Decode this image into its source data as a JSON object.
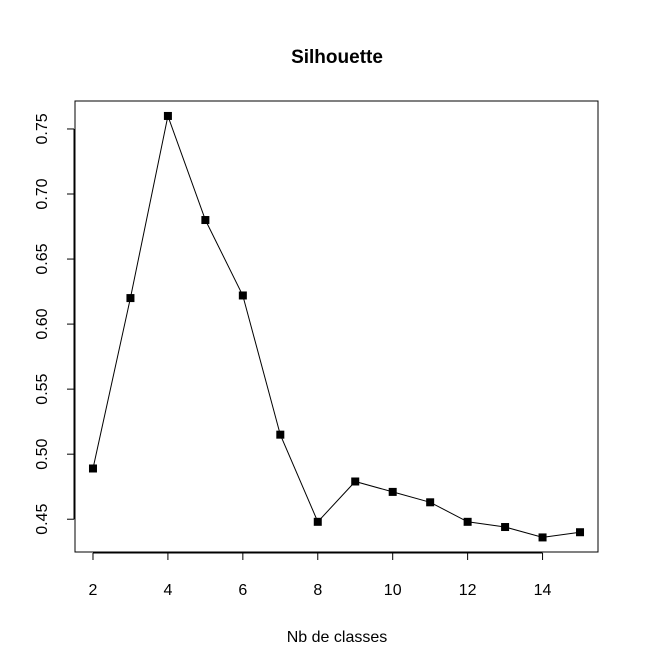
{
  "chart_data": {
    "type": "line",
    "title": "Silhouette",
    "xlabel": "Nb de classes",
    "ylabel": "",
    "x": [
      2,
      3,
      4,
      5,
      6,
      7,
      8,
      9,
      10,
      11,
      12,
      13,
      14,
      15
    ],
    "series": [
      {
        "values": [
          0.489,
          0.62,
          0.76,
          0.68,
          0.622,
          0.515,
          0.448,
          0.479,
          0.471,
          0.463,
          0.448,
          0.444,
          0.436,
          0.44
        ]
      }
    ],
    "xlim": [
      1.52,
      15.48
    ],
    "ylim": [
      0.4248,
      0.7715
    ],
    "xticks": [
      2,
      4,
      6,
      8,
      10,
      12,
      14
    ],
    "xtick_labels": [
      "2",
      "4",
      "6",
      "8",
      "10",
      "12",
      "14"
    ],
    "yticks": [
      0.45,
      0.5,
      0.55,
      0.6,
      0.65,
      0.7,
      0.75
    ],
    "ytick_labels": [
      "0.45",
      "0.50",
      "0.55",
      "0.60",
      "0.65",
      "0.70",
      "0.75"
    ],
    "marker": "square",
    "grid": false,
    "legend": false,
    "colors": {
      "line": "#000000",
      "marker": "#000000"
    }
  }
}
